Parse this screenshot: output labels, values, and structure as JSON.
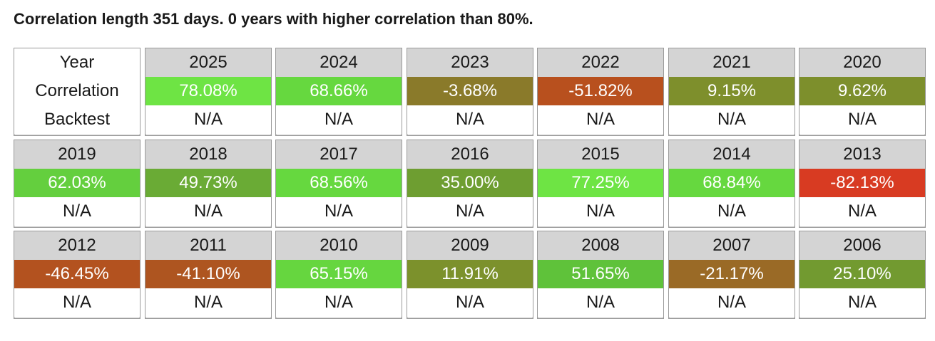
{
  "heading": "Correlation length 351 days. 0 years with higher correlation than 80%.",
  "labels": {
    "year": "Year",
    "correlation": "Correlation",
    "backtest": "Backtest"
  },
  "years": [
    {
      "year": "2025",
      "correlation": "78.08%",
      "backtest": "N/A",
      "color": "#6ee444"
    },
    {
      "year": "2024",
      "correlation": "68.66%",
      "backtest": "N/A",
      "color": "#66d83f"
    },
    {
      "year": "2023",
      "correlation": "-3.68%",
      "backtest": "N/A",
      "color": "#8a7a2a"
    },
    {
      "year": "2022",
      "correlation": "-51.82%",
      "backtest": "N/A",
      "color": "#b8501e"
    },
    {
      "year": "2021",
      "correlation": "9.15%",
      "backtest": "N/A",
      "color": "#7e8f2c"
    },
    {
      "year": "2020",
      "correlation": "9.62%",
      "backtest": "N/A",
      "color": "#7d8f2c"
    },
    {
      "year": "2019",
      "correlation": "62.03%",
      "backtest": "N/A",
      "color": "#64cf3e"
    },
    {
      "year": "2018",
      "correlation": "49.73%",
      "backtest": "N/A",
      "color": "#6aab35"
    },
    {
      "year": "2017",
      "correlation": "68.56%",
      "backtest": "N/A",
      "color": "#66d83f"
    },
    {
      "year": "2016",
      "correlation": "35.00%",
      "backtest": "N/A",
      "color": "#6e9e31"
    },
    {
      "year": "2015",
      "correlation": "77.25%",
      "backtest": "N/A",
      "color": "#6ee444"
    },
    {
      "year": "2014",
      "correlation": "68.84%",
      "backtest": "N/A",
      "color": "#66d83f"
    },
    {
      "year": "2013",
      "correlation": "-82.13%",
      "backtest": "N/A",
      "color": "#d83b22"
    },
    {
      "year": "2012",
      "correlation": "-46.45%",
      "backtest": "N/A",
      "color": "#b3521f"
    },
    {
      "year": "2011",
      "correlation": "-41.10%",
      "backtest": "N/A",
      "color": "#ae5520"
    },
    {
      "year": "2010",
      "correlation": "65.15%",
      "backtest": "N/A",
      "color": "#66d63f"
    },
    {
      "year": "2009",
      "correlation": "11.91%",
      "backtest": "N/A",
      "color": "#7c912c"
    },
    {
      "year": "2008",
      "correlation": "51.65%",
      "backtest": "N/A",
      "color": "#5fc23a"
    },
    {
      "year": "2007",
      "correlation": "-21.17%",
      "backtest": "N/A",
      "color": "#9a6a26"
    },
    {
      "year": "2006",
      "correlation": "25.10%",
      "backtest": "N/A",
      "color": "#729a30"
    }
  ]
}
